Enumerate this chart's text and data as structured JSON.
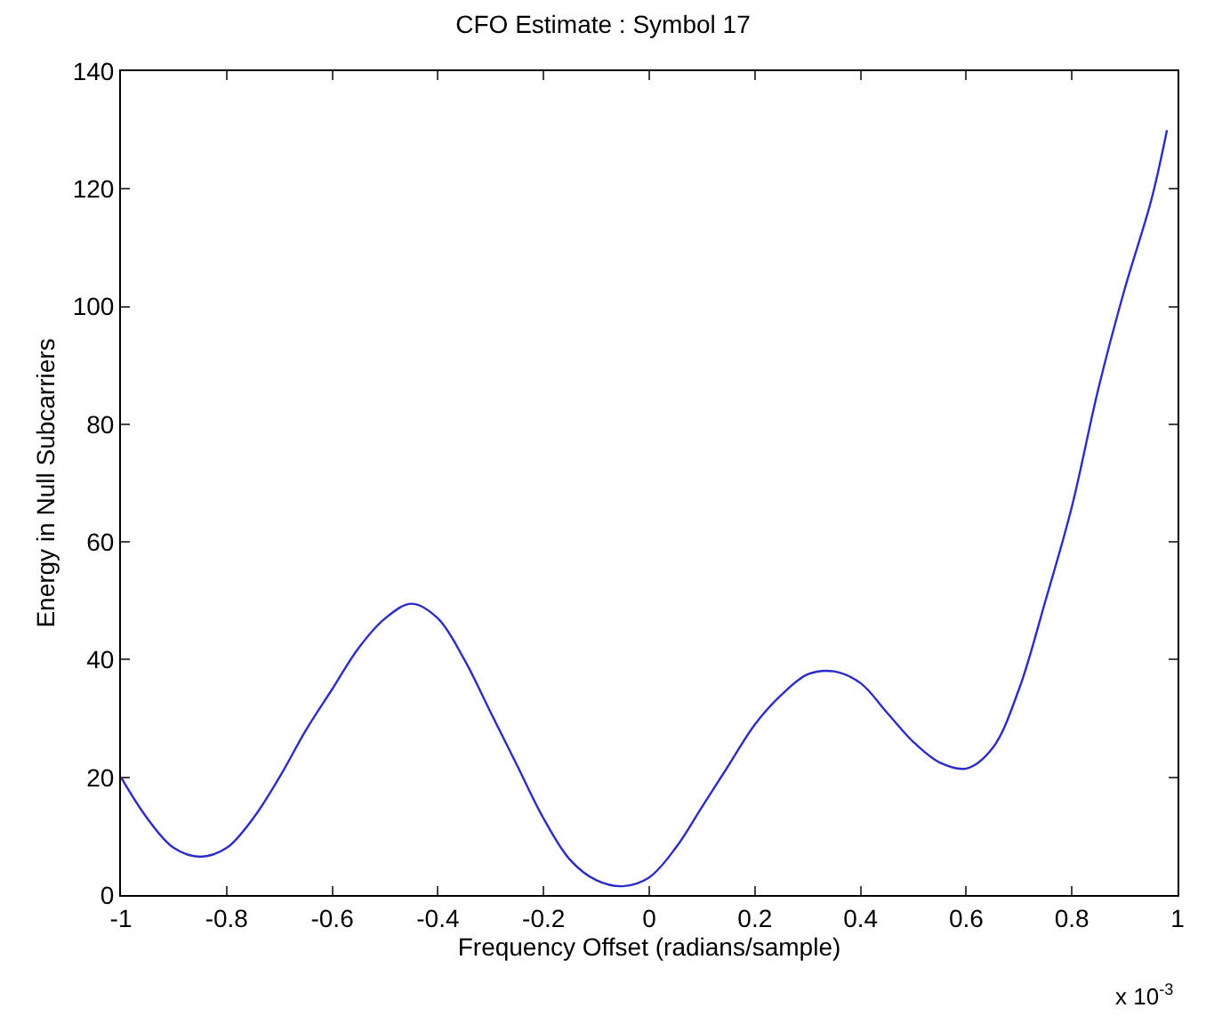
{
  "chart_data": {
    "type": "line",
    "title": "CFO Estimate : Symbol 17",
    "xlabel": "Frequency Offset (radians/sample)",
    "ylabel": "Energy in Null Subcarriers",
    "annotations": [
      "x 10$^{-3}$"
    ],
    "x": [
      -1,
      -0.95,
      -0.9,
      -0.85,
      -0.8,
      -0.75,
      -0.7,
      -0.65,
      -0.6,
      -0.55,
      -0.5,
      -0.45,
      -0.4,
      -0.35,
      -0.3,
      -0.25,
      -0.2,
      -0.15,
      -0.1,
      -0.05,
      0,
      0.05,
      0.1,
      0.15,
      0.2,
      0.25,
      0.3,
      0.35,
      0.4,
      0.45,
      0.5,
      0.55,
      0.6,
      0.65,
      0.7,
      0.75,
      0.8,
      0.85,
      0.9,
      0.95,
      0.98
    ],
    "series": [
      {
        "color": "#2b2bc8",
        "values": [
          20,
          13,
          8,
          6.5,
          8,
          13,
          20,
          28,
          35,
          42,
          47,
          49.5,
          47,
          40,
          31,
          22,
          13,
          6,
          2.5,
          1.5,
          3,
          8,
          15,
          22,
          29,
          34,
          37.5,
          38,
          36,
          31,
          26,
          22.5,
          21.5,
          25,
          35,
          50,
          66,
          86,
          103,
          118,
          130
        ]
      }
    ],
    "xlim": [
      -1,
      1
    ],
    "xticks": [
      -1,
      -0.8,
      -0.6,
      -0.4,
      -0.2,
      0,
      0.2,
      0.4,
      0.6,
      0.8,
      1
    ],
    "ylim": [
      0,
      140
    ],
    "yticks": [
      0,
      20,
      40,
      60,
      80,
      100,
      120,
      140
    ],
    "legend": false,
    "marker": "none",
    "line_style": "solid"
  }
}
